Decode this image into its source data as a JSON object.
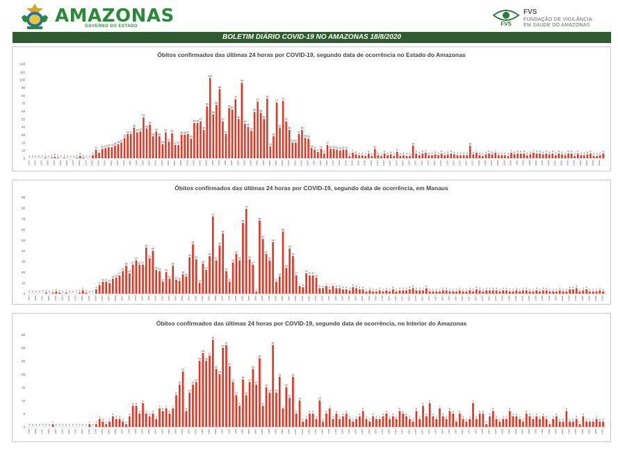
{
  "header": {
    "brand": "AMAZONAS",
    "brand_sub": "GOVERNO DO ESTADO",
    "fvs_title": "FVS",
    "fvs_line1": "FUNDAÇÃO DE VIGILÂNCIA",
    "fvs_line2": "EM SAÚDE DO AMAZONAS"
  },
  "banner": "BOLETIM DIÁRIO COVID-19 NO AMAZONAS 18/8/2020",
  "colors": {
    "bar": "#e8321e",
    "banner": "#2e5c2e",
    "brand": "#2a8a3a"
  },
  "chart_data": [
    {
      "type": "bar",
      "title": "Óbitos confirmados das últimas 24 horas por COVID-19, segundo data de ocorrência no Estado do Amazonas",
      "ylim": [
        0,
        120
      ],
      "yticks": [
        0,
        10,
        20,
        30,
        40,
        50,
        60,
        70,
        80,
        90,
        100,
        110,
        120
      ],
      "start_date": "13/03",
      "end_date": "18/08",
      "xlabel": "",
      "ylabel": "",
      "grid": false,
      "values": [
        0,
        0,
        0,
        0,
        0,
        1,
        0,
        1,
        2,
        1,
        0,
        1,
        0,
        0,
        0,
        1,
        3,
        1,
        0,
        0,
        4,
        11,
        7,
        12,
        13,
        14,
        14,
        16,
        18,
        20,
        26,
        31,
        31,
        39,
        33,
        34,
        52,
        38,
        43,
        28,
        34,
        28,
        18,
        33,
        21,
        32,
        17,
        17,
        30,
        30,
        31,
        25,
        45,
        45,
        47,
        36,
        66,
        102,
        56,
        68,
        88,
        47,
        31,
        64,
        62,
        75,
        50,
        96,
        44,
        40,
        35,
        59,
        72,
        58,
        50,
        76,
        15,
        28,
        71,
        39,
        73,
        47,
        36,
        20,
        20,
        31,
        36,
        26,
        25,
        13,
        11,
        8,
        12,
        6,
        17,
        12,
        12,
        11,
        10,
        11,
        11,
        3,
        7,
        5,
        4,
        4,
        3,
        6,
        3,
        12,
        4,
        3,
        6,
        4,
        5,
        3,
        8,
        3,
        4,
        3,
        3,
        16,
        6,
        4,
        6,
        7,
        4,
        4,
        5,
        4,
        6,
        4,
        5,
        6,
        5,
        4,
        4,
        4,
        4,
        16,
        5,
        7,
        4,
        3,
        5,
        6,
        5,
        7,
        4,
        4,
        4,
        3,
        7,
        5,
        6,
        6,
        6,
        4,
        5,
        7,
        6,
        6,
        5,
        6,
        5,
        6,
        4,
        6,
        5,
        4,
        6,
        6,
        3,
        6,
        4,
        4,
        5,
        6,
        3,
        3,
        4,
        6
      ]
    },
    {
      "type": "bar",
      "title": "Óbitos confirmados das últimas 24 horas por COVID-19, segundo data de ocorrência, em Manaus",
      "ylim": [
        0,
        90
      ],
      "yticks": [
        0,
        10,
        20,
        30,
        40,
        50,
        60,
        70,
        80,
        90
      ],
      "start_date": "13/03",
      "end_date": "18/08",
      "xlabel": "",
      "ylabel": "",
      "grid": false,
      "values": [
        0,
        0,
        0,
        0,
        0,
        1,
        0,
        1,
        2,
        1,
        0,
        1,
        0,
        0,
        0,
        1,
        3,
        1,
        0,
        0,
        4,
        8,
        11,
        11,
        10,
        14,
        15,
        17,
        21,
        26,
        19,
        27,
        31,
        27,
        27,
        43,
        33,
        40,
        22,
        21,
        11,
        20,
        14,
        26,
        13,
        12,
        18,
        16,
        34,
        46,
        32,
        10,
        28,
        22,
        35,
        72,
        31,
        45,
        56,
        21,
        11,
        29,
        37,
        31,
        66,
        79,
        32,
        27,
        2,
        68,
        51,
        37,
        31,
        48,
        11,
        16,
        58,
        24,
        42,
        35,
        17,
        7,
        6,
        19,
        17,
        17,
        15,
        5,
        5,
        7,
        4,
        7,
        5,
        5,
        4,
        4,
        3,
        6,
        5,
        4,
        4,
        2,
        3,
        2,
        2,
        3,
        2,
        3,
        2,
        4,
        2,
        3,
        3,
        3,
        4,
        5,
        3,
        3,
        3,
        5,
        2,
        2,
        2,
        2,
        3,
        3,
        2,
        2,
        2,
        3,
        2,
        2,
        3,
        2,
        4,
        3,
        2,
        3,
        3,
        3,
        3,
        2,
        3,
        3,
        2,
        2,
        3,
        2,
        3,
        3,
        2,
        2,
        3,
        2,
        3,
        3,
        2,
        2,
        2,
        3,
        2,
        2,
        4,
        4,
        5,
        2,
        3,
        4,
        2,
        2,
        2,
        3,
        2
      ]
    },
    {
      "type": "bar",
      "title": "Óbitos confirmados das últimas 24 horas por COVID-19, segundo data de ocorrência, no Interior do Amazonas",
      "ylim": [
        0,
        35
      ],
      "yticks": [
        0,
        5,
        10,
        15,
        20,
        25,
        30,
        35
      ],
      "start_date": "13/03",
      "end_date": "18/08",
      "xlabel": "",
      "ylabel": "",
      "grid": false,
      "values": [
        0,
        0,
        0,
        0,
        0,
        0,
        0,
        1,
        0,
        0,
        0,
        0,
        0,
        0,
        0,
        0,
        0,
        0,
        1,
        0,
        1,
        3,
        2,
        1,
        2,
        4,
        3,
        3,
        2,
        1,
        4,
        8,
        8,
        5,
        9,
        5,
        4,
        5,
        3,
        7,
        6,
        7,
        5,
        7,
        12,
        16,
        21,
        6,
        13,
        16,
        17,
        25,
        28,
        25,
        27,
        33,
        22,
        20,
        30,
        31,
        23,
        17,
        12,
        8,
        18,
        12,
        17,
        22,
        16,
        26,
        8,
        15,
        13,
        31,
        13,
        19,
        7,
        15,
        11,
        19,
        5,
        10,
        2,
        3,
        5,
        5,
        3,
        10,
        2,
        5,
        7,
        3,
        5,
        3,
        4,
        5,
        3,
        2,
        3,
        4,
        6,
        3,
        2,
        4,
        3,
        3,
        4,
        5,
        3,
        4,
        3,
        6,
        5,
        4,
        3,
        2,
        6,
        3,
        8,
        4,
        9,
        4,
        3,
        7,
        4,
        3,
        6,
        5,
        2,
        5,
        3,
        2,
        3,
        9,
        3,
        5,
        5,
        1,
        4,
        6,
        3,
        2,
        3,
        3,
        6,
        4,
        4,
        3,
        2,
        5,
        4,
        3,
        4,
        3,
        4,
        3,
        1,
        3,
        4,
        2,
        2,
        6,
        2,
        2,
        3,
        1,
        4,
        2,
        2,
        2,
        3,
        2,
        2
      ]
    }
  ]
}
